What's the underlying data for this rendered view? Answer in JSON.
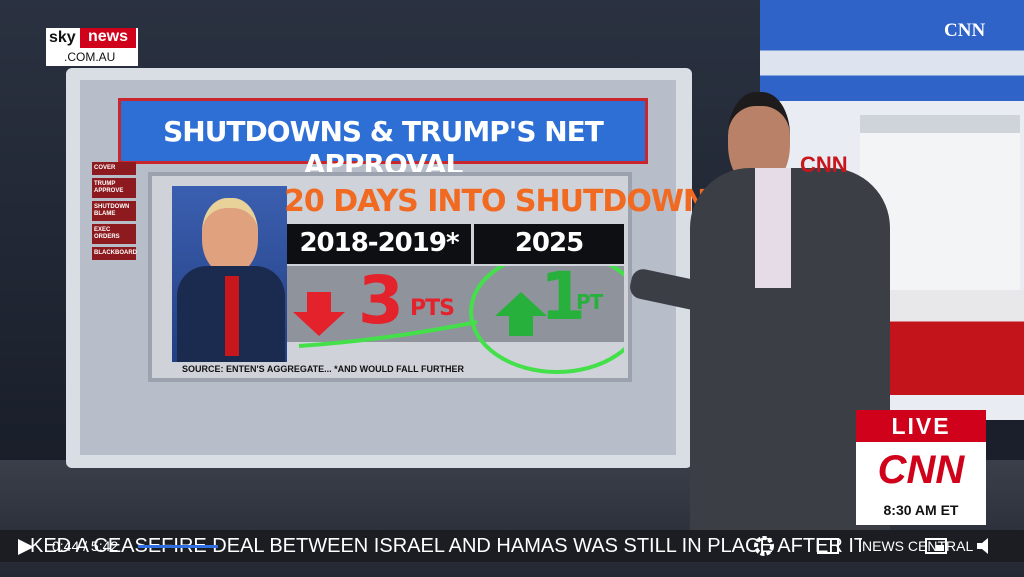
{
  "header": {
    "sky": "sky",
    "news": "news",
    "domain": ".COM.AU",
    "network": "CNN"
  },
  "board": {
    "title": "SHUTDOWNS & TRUMP'S NET APPROVAL",
    "menu": [
      "COVER",
      "TRUMP APPROVE",
      "SHUTDOWN BLAME",
      "EXEC ORDERS",
      "BLACKBOARD"
    ],
    "subtitle": "20 DAYS INTO SHUTDOWN",
    "columns": [
      {
        "label": "2018-2019*",
        "change": "3",
        "unit": "PTS"
      },
      {
        "label": "2025",
        "change": "1",
        "unit": "PT"
      }
    ],
    "source": "SOURCE: ENTEN'S AGGREGATE... *AND WOULD FALL FURTHER"
  },
  "studio_logo": "CNN",
  "live_bug": {
    "live": "LIVE",
    "logo": "CNN",
    "time": "8:30 AM ET"
  },
  "ticker": {
    "text": "KED A CEASEFIRE DEAL BETWEEN ISRAEL AND HAMAS WAS STILL IN PLACE AFTER IT",
    "brand": "NEWS CENTRAL"
  },
  "player": {
    "time": "0:44 / 5:42"
  }
}
